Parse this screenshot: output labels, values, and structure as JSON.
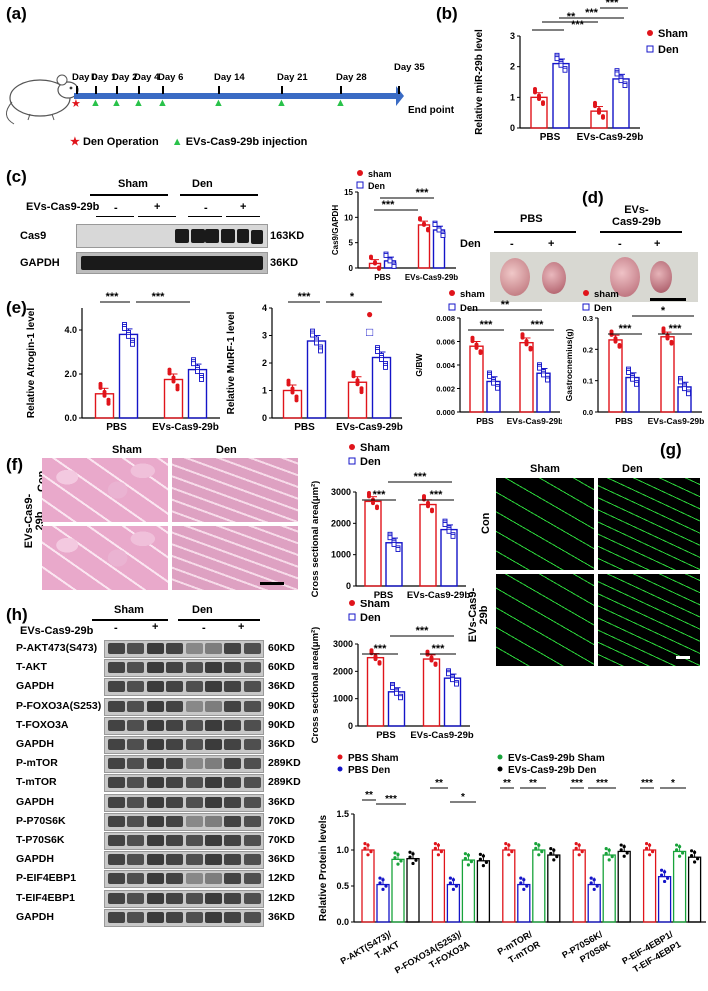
{
  "panels": {
    "a": "(a)",
    "b": "(b)",
    "c": "(c)",
    "d": "(d)",
    "e": "(e)",
    "f": "(f)",
    "g": "(g)",
    "h": "(h)"
  },
  "timeline": {
    "days": [
      "Day 0",
      "Day 1",
      "Day 2",
      "Day 4",
      "Day 6",
      "Day 14",
      "Day 21",
      "Day 28",
      "Day 35"
    ],
    "end": "End point",
    "legend_den": "Den Operation",
    "legend_evs": "EVs-Cas9-29b injection",
    "colors": {
      "den": "#e0141b",
      "evs": "#29c24a",
      "arrow": "#3a6bc4"
    }
  },
  "common": {
    "sham": "Sham",
    "den": "Den",
    "sham_l": "sham",
    "pbs": "PBS",
    "evs": "EVs-Cas9-29b",
    "minus": "-",
    "plus": "+",
    "con": "Con",
    "evs_stack": "EVs-Cas9-29b"
  },
  "c": {
    "row_evs": "EVs-Cas9-29b",
    "cas9": "Cas9",
    "gapdh": "GAPDH",
    "kd1": "163KD",
    "kd2": "36KD"
  },
  "d": {
    "pbs": "PBS",
    "evs1": "EVs-",
    "evs2": "Cas9-29b",
    "den": "Den"
  },
  "h_blots": [
    {
      "name": "P-AKT473(S473)",
      "kd": "60KD"
    },
    {
      "name": "T-AKT",
      "kd": "60KD"
    },
    {
      "name": "GAPDH",
      "kd": "36KD"
    },
    {
      "name": "P-FOXO3A(S253)",
      "kd": "90KD"
    },
    {
      "name": "T-FOXO3A",
      "kd": "90KD"
    },
    {
      "name": "GAPDH",
      "kd": "36KD"
    },
    {
      "name": "P-mTOR",
      "kd": "289KD"
    },
    {
      "name": "T-mTOR",
      "kd": "289KD"
    },
    {
      "name": "GAPDH",
      "kd": "36KD"
    },
    {
      "name": "P-P70S6K",
      "kd": "70KD"
    },
    {
      "name": "T-P70S6K",
      "kd": "70KD"
    },
    {
      "name": "GAPDH",
      "kd": "36KD"
    },
    {
      "name": "P-EIF4EBP1",
      "kd": "12KD"
    },
    {
      "name": "T-EIF4EBP1",
      "kd": "12KD"
    },
    {
      "name": "GAPDH",
      "kd": "36KD"
    }
  ],
  "h_legend": {
    "a": "PBS Sham",
    "b": "PBS Den",
    "c": "EVs-Cas9-29b Sham",
    "d": "EVs-Cas9-29b Den"
  },
  "colors": {
    "sham": "#e0141b",
    "den": "#1414c8",
    "evs_sham": "#18a33a",
    "evs_den": "#000000"
  },
  "chart_data": [
    {
      "id": "b",
      "type": "bar",
      "ylabel": "Relative miR-29b level",
      "categories": [
        "PBS",
        "EVs-Cas9-29b"
      ],
      "ylim": [
        0,
        3
      ],
      "yticks": [
        0,
        1,
        2,
        3
      ],
      "series": [
        {
          "name": "Sham",
          "values": [
            1.0,
            0.55
          ]
        },
        {
          "name": "Den",
          "values": [
            2.1,
            1.6
          ]
        }
      ],
      "annotations": [
        "***",
        "***",
        "**",
        "***"
      ],
      "legend": "top-right"
    },
    {
      "id": "c",
      "type": "bar",
      "ylabel": "Cas9/GAPDH",
      "categories": [
        "PBS",
        "EVs-Cas9-29b"
      ],
      "ylim": [
        0,
        15
      ],
      "yticks": [
        0,
        5,
        10,
        15
      ],
      "series": [
        {
          "name": "sham",
          "values": [
            0.9,
            8.5
          ]
        },
        {
          "name": "Den",
          "values": [
            1.4,
            7.5
          ]
        }
      ],
      "annotations": [
        "***",
        "***"
      ],
      "legend": "top"
    },
    {
      "id": "e1",
      "type": "bar",
      "ylabel": "Relative Atrogin-1 level",
      "categories": [
        "PBS",
        "EVs-Cas9-29b"
      ],
      "ylim": [
        0,
        5
      ],
      "yticks": [
        "0.0",
        "2.0",
        "4.0"
      ],
      "series": [
        {
          "name": "Sham",
          "values": [
            1.1,
            1.75
          ]
        },
        {
          "name": "Den",
          "values": [
            3.8,
            2.2
          ]
        }
      ],
      "annotations": [
        "***",
        "***"
      ]
    },
    {
      "id": "e2",
      "type": "bar",
      "ylabel": "Relative MuRF-1 level",
      "categories": [
        "PBS",
        "EVs-Cas9-29b"
      ],
      "ylim": [
        0,
        4
      ],
      "yticks": [
        0,
        1,
        2,
        3,
        4
      ],
      "series": [
        {
          "name": "Sham",
          "values": [
            1.0,
            1.3
          ]
        },
        {
          "name": "Den",
          "values": [
            2.8,
            2.2
          ]
        }
      ],
      "annotations": [
        "***",
        "*"
      ],
      "legend": "right"
    },
    {
      "id": "e3",
      "type": "bar",
      "ylabel": "G/BW",
      "categories": [
        "PBS",
        "EVs-Cas9-29b"
      ],
      "ylim": [
        0,
        0.008
      ],
      "yticks": [
        "0.000",
        "0.002",
        "0.004",
        "0.006",
        "0.008"
      ],
      "series": [
        {
          "name": "sham",
          "values": [
            0.0056,
            0.0059
          ]
        },
        {
          "name": "Den",
          "values": [
            0.0026,
            0.0033
          ]
        }
      ],
      "annotations": [
        "**",
        "***",
        "***"
      ],
      "legend": "top"
    },
    {
      "id": "e4",
      "type": "bar",
      "ylabel": "Gastrocnemius(g)",
      "categories": [
        "PBS",
        "EVs-Cas9-29b"
      ],
      "ylim": [
        0,
        0.3
      ],
      "yticks": [
        "0.0",
        "0.1",
        "0.2",
        "0.3"
      ],
      "series": [
        {
          "name": "sham",
          "values": [
            0.23,
            0.24
          ]
        },
        {
          "name": "Den",
          "values": [
            0.11,
            0.08
          ]
        }
      ],
      "annotations": [
        "*",
        "***",
        "***"
      ],
      "legend": "top"
    },
    {
      "id": "f",
      "type": "bar",
      "ylabel": "Cross sectional area(μm²)",
      "categories": [
        "PBS",
        "EVs-Cas9-29b"
      ],
      "ylim": [
        0,
        3000
      ],
      "yticks": [
        0,
        1000,
        2000,
        3000
      ],
      "series": [
        {
          "name": "Sham",
          "values": [
            2700,
            2600
          ]
        },
        {
          "name": "Den",
          "values": [
            1380,
            1800
          ]
        }
      ],
      "annotations": [
        "***",
        "***",
        "***"
      ],
      "legend": "top"
    },
    {
      "id": "h1",
      "type": "bar",
      "ylabel": "Cross sectional area(μm²)",
      "categories": [
        "PBS",
        "EVs-Cas9-29b"
      ],
      "ylim": [
        0,
        3000
      ],
      "yticks": [
        0,
        1000,
        2000,
        3000
      ],
      "series": [
        {
          "name": "Sham",
          "values": [
            2500,
            2450
          ]
        },
        {
          "name": "Den",
          "values": [
            1250,
            1750
          ]
        }
      ],
      "annotations": [
        "***",
        "***",
        "***"
      ],
      "legend": "top"
    },
    {
      "id": "h2",
      "type": "bar",
      "ylabel": "Relative Protein levels",
      "categories": [
        "P-AKT(S473)/ T-AKT",
        "P-FOXO3A(S253)/ T-FOXO3A",
        "P-mTOR/ T-mTOR",
        "P-P70S6K/ P70S6K",
        "P-EIF-4EBP1/ T-EIF-4EBP1"
      ],
      "ylim": [
        0,
        1.5
      ],
      "yticks": [
        "0.0",
        "0.5",
        "1.0",
        "1.5"
      ],
      "series": [
        {
          "name": "PBS Sham",
          "values": [
            1.0,
            1.0,
            1.0,
            1.0,
            1.0
          ]
        },
        {
          "name": "PBS Den",
          "values": [
            0.52,
            0.52,
            0.52,
            0.52,
            0.63
          ]
        },
        {
          "name": "EVs-Cas9-29b Sham",
          "values": [
            0.87,
            0.86,
            1.0,
            0.93,
            0.98
          ]
        },
        {
          "name": "EVs-Cas9-29b Den",
          "values": [
            0.88,
            0.85,
            0.93,
            0.98,
            0.9
          ]
        }
      ],
      "annotations": [
        "**",
        "***",
        "**",
        "*",
        "**",
        "**",
        "***",
        "***",
        "***",
        "*"
      ],
      "legend": "top"
    }
  ]
}
